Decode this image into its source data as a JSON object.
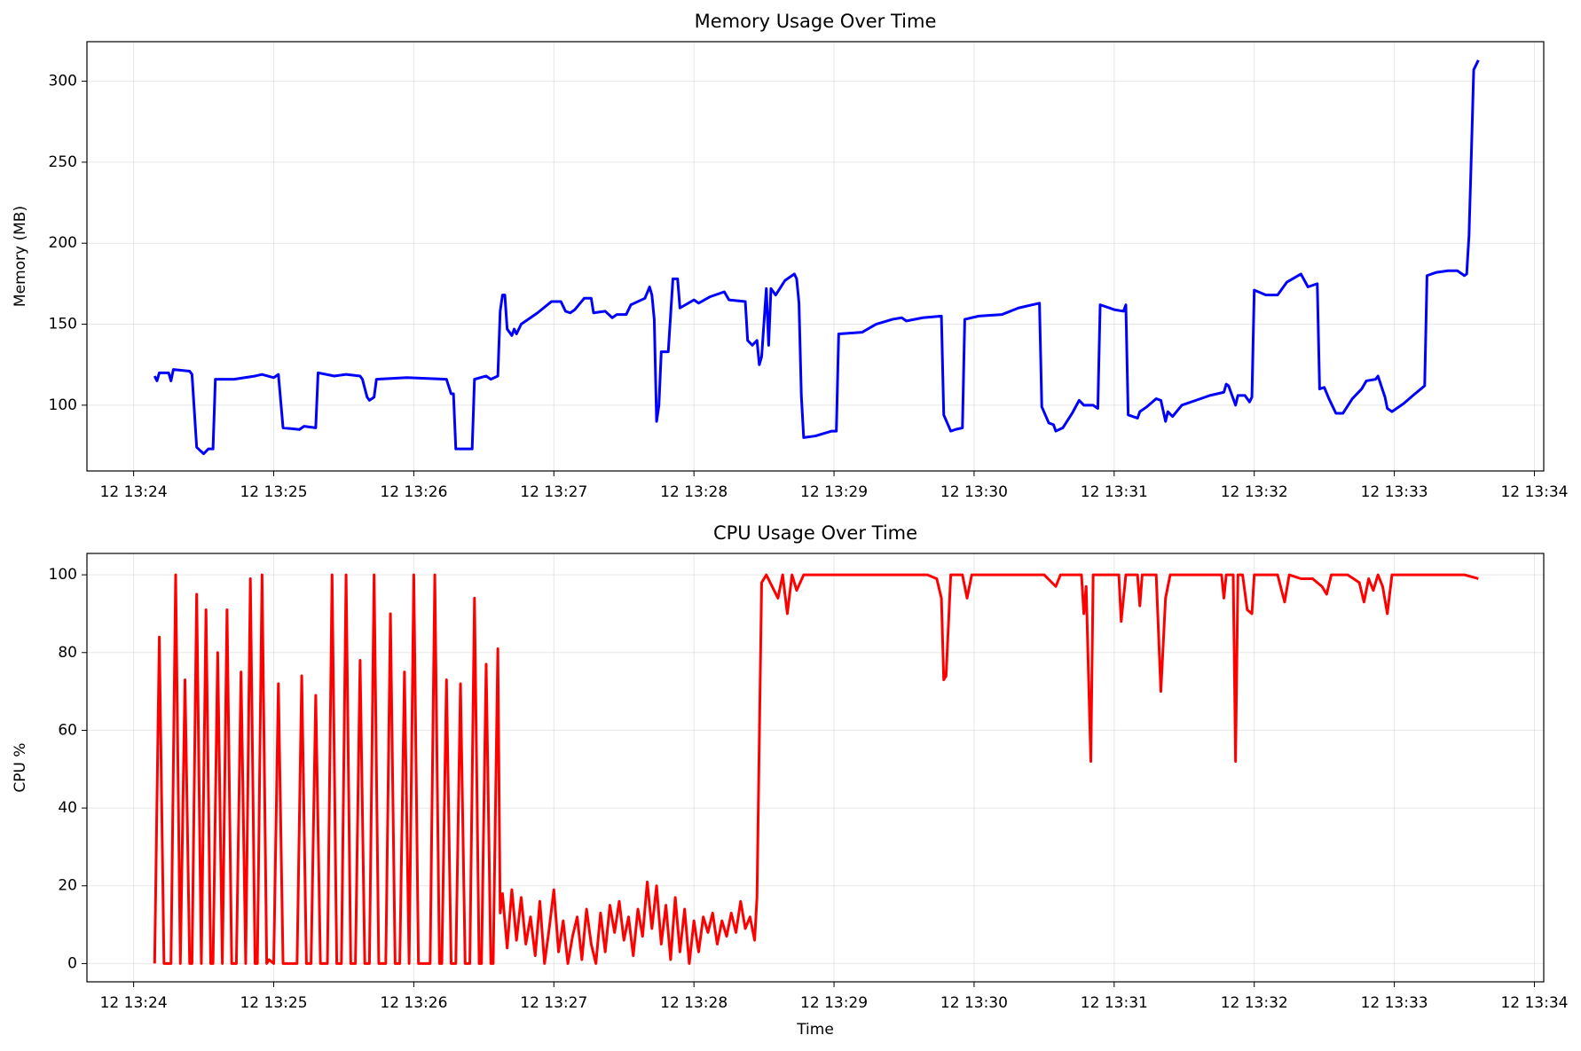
{
  "chart_data": [
    {
      "type": "line",
      "title": "Memory Usage Over Time",
      "ylabel": "Memory (MB)",
      "color": "#0000ff",
      "grid": true,
      "xlim": [
        "12 13:23:40",
        "12 13:34:04"
      ],
      "ylim": [
        59.4,
        324.4
      ],
      "xticks": [
        "12 13:24",
        "12 13:25",
        "12 13:26",
        "12 13:27",
        "12 13:28",
        "12 13:29",
        "12 13:30",
        "12 13:31",
        "12 13:32",
        "12 13:33",
        "12 13:34"
      ],
      "yticks": [
        100,
        150,
        200,
        250,
        300
      ],
      "x": [
        "12 13:24:09",
        "12 13:24:10",
        "12 13:24:11",
        "12 13:24:15",
        "12 13:24:16",
        "12 13:24:17",
        "12 13:24:24",
        "12 13:24:25",
        "12 13:24:27",
        "12 13:24:30",
        "12 13:24:32",
        "12 13:24:34",
        "12 13:24:35",
        "12 13:24:43",
        "12 13:24:52",
        "12 13:24:55",
        "12 13:25:00",
        "12 13:25:02",
        "12 13:25:04",
        "12 13:25:11",
        "12 13:25:13",
        "12 13:25:18",
        "12 13:25:19",
        "12 13:25:26",
        "12 13:25:31",
        "12 13:25:37",
        "12 13:25:38",
        "12 13:25:40",
        "12 13:25:41",
        "12 13:25:43",
        "12 13:25:44",
        "12 13:25:57",
        "12 13:26:14",
        "12 13:26:16",
        "12 13:26:17",
        "12 13:26:18",
        "12 13:26:25",
        "12 13:26:26",
        "12 13:26:31",
        "12 13:26:33",
        "12 13:26:36",
        "12 13:26:37",
        "12 13:26:38",
        "12 13:26:39",
        "12 13:26:40",
        "12 13:26:42",
        "12 13:26:43",
        "12 13:26:44",
        "12 13:26:46",
        "12 13:26:53",
        "12 13:26:59",
        "12 13:27:03",
        "12 13:27:05",
        "12 13:27:07",
        "12 13:27:09",
        "12 13:27:13",
        "12 13:27:16",
        "12 13:27:17",
        "12 13:27:22",
        "12 13:27:25",
        "12 13:27:27",
        "12 13:27:31",
        "12 13:27:33",
        "12 13:27:39",
        "12 13:27:41",
        "12 13:27:42",
        "12 13:27:43",
        "12 13:27:44",
        "12 13:27:45",
        "12 13:27:46",
        "12 13:27:49",
        "12 13:27:51",
        "12 13:27:53",
        "12 13:27:54",
        "12 13:28:00",
        "12 13:28:02",
        "12 13:28:07",
        "12 13:28:13",
        "12 13:28:15",
        "12 13:28:22",
        "12 13:28:23",
        "12 13:28:25",
        "12 13:28:27",
        "12 13:28:28",
        "12 13:28:29",
        "12 13:28:31",
        "12 13:28:32",
        "12 13:28:33",
        "12 13:28:35",
        "12 13:28:39",
        "12 13:28:43",
        "12 13:28:44",
        "12 13:28:45",
        "12 13:28:46",
        "12 13:28:47",
        "12 13:28:52",
        "12 13:28:59",
        "12 13:29:01",
        "12 13:29:02",
        "12 13:29:12",
        "12 13:29:18",
        "12 13:29:25",
        "12 13:29:29",
        "12 13:29:31",
        "12 13:29:38",
        "12 13:29:46",
        "12 13:29:47",
        "12 13:29:50",
        "12 13:29:52",
        "12 13:29:55",
        "12 13:29:56",
        "12 13:30:02",
        "12 13:30:12",
        "12 13:30:19",
        "12 13:30:28",
        "12 13:30:29",
        "12 13:30:32",
        "12 13:30:34",
        "12 13:30:35",
        "12 13:30:38",
        "12 13:30:42",
        "12 13:30:45",
        "12 13:30:47",
        "12 13:30:51",
        "12 13:30:53",
        "12 13:30:54",
        "12 13:31:00",
        "12 13:31:04",
        "12 13:31:05",
        "12 13:31:06",
        "12 13:31:10",
        "12 13:31:11",
        "12 13:31:14",
        "12 13:31:18",
        "12 13:31:20",
        "12 13:31:22",
        "12 13:31:23",
        "12 13:31:25",
        "12 13:31:29",
        "12 13:31:35",
        "12 13:31:41",
        "12 13:31:47",
        "12 13:31:48",
        "12 13:31:49",
        "12 13:31:52",
        "12 13:31:53",
        "12 13:31:56",
        "12 13:31:58",
        "12 13:31:59",
        "12 13:32:00",
        "12 13:32:05",
        "12 13:32:10",
        "12 13:32:14",
        "12 13:32:20",
        "12 13:32:23",
        "12 13:32:27",
        "12 13:32:28",
        "12 13:32:30",
        "12 13:32:32",
        "12 13:32:35",
        "12 13:32:38",
        "12 13:32:42",
        "12 13:32:46",
        "12 13:32:48",
        "12 13:32:52",
        "12 13:32:53",
        "12 13:32:56",
        "12 13:32:57",
        "12 13:32:59",
        "12 13:33:04",
        "12 13:33:08",
        "12 13:33:13",
        "12 13:33:14",
        "12 13:33:18",
        "12 13:33:23",
        "12 13:33:27",
        "12 13:33:30",
        "12 13:33:31",
        "12 13:33:32",
        "12 13:33:33",
        "12 13:33:34",
        "12 13:33:36"
      ],
      "values": [
        118,
        115,
        120,
        120,
        115,
        122,
        121,
        119,
        74,
        70,
        73,
        73,
        116,
        116,
        118,
        119,
        117,
        119,
        86,
        85,
        87,
        86,
        120,
        118,
        119,
        118,
        116,
        105,
        103,
        105,
        116,
        117,
        116,
        107,
        107,
        73,
        73,
        116,
        118,
        116,
        118,
        158,
        168,
        168,
        147,
        143,
        147,
        144,
        150,
        157,
        164,
        164,
        158,
        157,
        159,
        166,
        166,
        157,
        158,
        154,
        156,
        156,
        162,
        166,
        173,
        168,
        153,
        90,
        100,
        133,
        133,
        178,
        178,
        160,
        165,
        163,
        167,
        170,
        165,
        164,
        140,
        137,
        140,
        125,
        130,
        172,
        137,
        172,
        168,
        177,
        181,
        178,
        163,
        106,
        80,
        81,
        84,
        84,
        144,
        145,
        150,
        153,
        154,
        152,
        154,
        155,
        94,
        84,
        85,
        86,
        153,
        155,
        156,
        160,
        163,
        99,
        89,
        88,
        84,
        86,
        95,
        103,
        100,
        100,
        98,
        162,
        159,
        158,
        162,
        94,
        92,
        96,
        99,
        104,
        103,
        90,
        96,
        93,
        100,
        103,
        106,
        108,
        113,
        112,
        100,
        106,
        106,
        102,
        105,
        171,
        168,
        168,
        176,
        181,
        173,
        175,
        110,
        111,
        104,
        95,
        95,
        104,
        110,
        115,
        116,
        118,
        105,
        98,
        96,
        101,
        106,
        112,
        180,
        182,
        183,
        183,
        180,
        181,
        205,
        255,
        307,
        313
      ]
    },
    {
      "type": "line",
      "title": "CPU Usage Over Time",
      "ylabel": "CPU %",
      "xlabel": "Time",
      "color": "#ff0000",
      "grid": true,
      "xlim": [
        "12 13:23:40",
        "12 13:34:04"
      ],
      "ylim": [
        -4.7,
        105.5
      ],
      "xticks": [
        "12 13:24",
        "12 13:25",
        "12 13:26",
        "12 13:27",
        "12 13:28",
        "12 13:29",
        "12 13:30",
        "12 13:31",
        "12 13:32",
        "12 13:33",
        "12 13:34"
      ],
      "yticks": [
        0,
        20,
        40,
        60,
        80,
        100
      ],
      "x": [
        "12 13:24:09",
        "12 13:24:11",
        "12 13:24:13",
        "12 13:24:16",
        "12 13:24:18",
        "12 13:24:20",
        "12 13:24:22",
        "12 13:24:24",
        "12 13:24:25",
        "12 13:24:27",
        "12 13:24:29",
        "12 13:24:31",
        "12 13:24:33",
        "12 13:24:34",
        "12 13:24:36",
        "12 13:24:38",
        "12 13:24:40",
        "12 13:24:42",
        "12 13:24:44",
        "12 13:24:46",
        "12 13:24:48",
        "12 13:24:50",
        "12 13:24:52",
        "12 13:24:53",
        "12 13:24:55",
        "12 13:24:57",
        "12 13:24:58",
        "12 13:25:00",
        "12 13:25:02",
        "12 13:25:04",
        "12 13:25:10",
        "12 13:25:12",
        "12 13:25:14",
        "12 13:25:16",
        "12 13:25:18",
        "12 13:25:20",
        "12 13:25:23",
        "12 13:25:25",
        "12 13:25:27",
        "12 13:25:29",
        "12 13:25:31",
        "12 13:25:33",
        "12 13:25:35",
        "12 13:25:37",
        "12 13:25:39",
        "12 13:25:41",
        "12 13:25:43",
        "12 13:25:45",
        "12 13:25:48",
        "12 13:25:50",
        "12 13:25:52",
        "12 13:25:54",
        "12 13:25:56",
        "12 13:25:58",
        "12 13:26:00",
        "12 13:26:02",
        "12 13:26:07",
        "12 13:26:09",
        "12 13:26:11",
        "12 13:26:12",
        "12 13:26:14",
        "12 13:26:16",
        "12 13:26:18",
        "12 13:26:20",
        "12 13:26:22",
        "12 13:26:24",
        "12 13:26:26",
        "12 13:26:28",
        "12 13:26:29",
        "12 13:26:31",
        "12 13:26:33",
        "12 13:26:34",
        "12 13:26:36",
        "12 13:26:37",
        "12 13:26:38",
        "12 13:26:40",
        "12 13:26:42",
        "12 13:26:44",
        "12 13:26:46",
        "12 13:26:48",
        "12 13:26:50",
        "12 13:26:52",
        "12 13:26:54",
        "12 13:26:56",
        "12 13:26:58",
        "12 13:27:00",
        "12 13:27:02",
        "12 13:27:04",
        "12 13:27:06",
        "12 13:27:08",
        "12 13:27:10",
        "12 13:27:12",
        "12 13:27:14",
        "12 13:27:16",
        "12 13:27:18",
        "12 13:27:20",
        "12 13:27:22",
        "12 13:27:24",
        "12 13:27:26",
        "12 13:27:28",
        "12 13:27:30",
        "12 13:27:32",
        "12 13:27:34",
        "12 13:27:36",
        "12 13:27:38",
        "12 13:27:40",
        "12 13:27:42",
        "12 13:27:44",
        "12 13:27:46",
        "12 13:27:48",
        "12 13:27:50",
        "12 13:27:52",
        "12 13:27:54",
        "12 13:27:56",
        "12 13:27:58",
        "12 13:28:00",
        "12 13:28:02",
        "12 13:28:04",
        "12 13:28:06",
        "12 13:28:08",
        "12 13:28:10",
        "12 13:28:12",
        "12 13:28:14",
        "12 13:28:16",
        "12 13:28:18",
        "12 13:28:20",
        "12 13:28:22",
        "12 13:28:24",
        "12 13:28:26",
        "12 13:28:27",
        "12 13:28:29",
        "12 13:28:31",
        "12 13:28:36",
        "12 13:28:38",
        "12 13:28:40",
        "12 13:28:42",
        "12 13:28:44",
        "12 13:28:47",
        "12 13:28:55",
        "12 13:29:05",
        "12 13:29:20",
        "12 13:29:40",
        "12 13:29:44",
        "12 13:29:46",
        "12 13:29:47",
        "12 13:29:48",
        "12 13:29:50",
        "12 13:29:55",
        "12 13:29:57",
        "12 13:29:59",
        "12 13:30:15",
        "12 13:30:30",
        "12 13:30:35",
        "12 13:30:37",
        "12 13:30:46",
        "12 13:30:47",
        "12 13:30:48",
        "12 13:30:50",
        "12 13:30:51",
        "12 13:31:02",
        "12 13:31:03",
        "12 13:31:05",
        "12 13:31:10",
        "12 13:31:11",
        "12 13:31:12",
        "12 13:31:18",
        "12 13:31:20",
        "12 13:31:22",
        "12 13:31:24",
        "12 13:31:35",
        "12 13:31:46",
        "12 13:31:47",
        "12 13:31:48",
        "12 13:31:51",
        "12 13:31:52",
        "12 13:31:53",
        "12 13:31:55",
        "12 13:31:57",
        "12 13:31:59",
        "12 13:32:00",
        "12 13:32:10",
        "12 13:32:13",
        "12 13:32:15",
        "12 13:32:20",
        "12 13:32:25",
        "12 13:32:29",
        "12 13:32:31",
        "12 13:32:33",
        "12 13:32:40",
        "12 13:32:45",
        "12 13:32:47",
        "12 13:32:49",
        "12 13:32:51",
        "12 13:32:53",
        "12 13:32:55",
        "12 13:32:57",
        "12 13:32:59",
        "12 13:33:10",
        "12 13:33:20",
        "12 13:33:25",
        "12 13:33:30",
        "12 13:33:36"
      ],
      "values": [
        0,
        84,
        0,
        0,
        100,
        0,
        73,
        0,
        0,
        95,
        0,
        91,
        0,
        0,
        80,
        0,
        91,
        0,
        0,
        75,
        0,
        99,
        0,
        0,
        100,
        0,
        1,
        0,
        72,
        0,
        0,
        74,
        0,
        0,
        69,
        0,
        0,
        100,
        0,
        0,
        100,
        0,
        0,
        78,
        0,
        0,
        100,
        0,
        0,
        90,
        0,
        0,
        75,
        0,
        100,
        0,
        0,
        100,
        0,
        0,
        73,
        0,
        0,
        72,
        0,
        0,
        94,
        0,
        0,
        77,
        0,
        0,
        81,
        13,
        18,
        4,
        19,
        6,
        17,
        5,
        12,
        2,
        16,
        0,
        9,
        19,
        3,
        11,
        0,
        7,
        12,
        1,
        14,
        5,
        0,
        13,
        3,
        15,
        8,
        16,
        6,
        12,
        2,
        14,
        7,
        21,
        9,
        20,
        5,
        15,
        1,
        17,
        3,
        14,
        0,
        11,
        3,
        12,
        8,
        13,
        5,
        11,
        7,
        13,
        8,
        16,
        9,
        12,
        6,
        17,
        98,
        100,
        94,
        100,
        90,
        100,
        96,
        100,
        100,
        100,
        100,
        100,
        99,
        94,
        73,
        74,
        100,
        100,
        94,
        100,
        100,
        100,
        97,
        100,
        100,
        90,
        97,
        52,
        100,
        100,
        88,
        100,
        100,
        92,
        100,
        100,
        70,
        94,
        100,
        100,
        100,
        94,
        100,
        100,
        52,
        100,
        100,
        91,
        90,
        100,
        100,
        93,
        100,
        99,
        99,
        97,
        95,
        100,
        100,
        98,
        93,
        99,
        96,
        100,
        97,
        90,
        100,
        100,
        100,
        100,
        100,
        99
      ]
    }
  ]
}
